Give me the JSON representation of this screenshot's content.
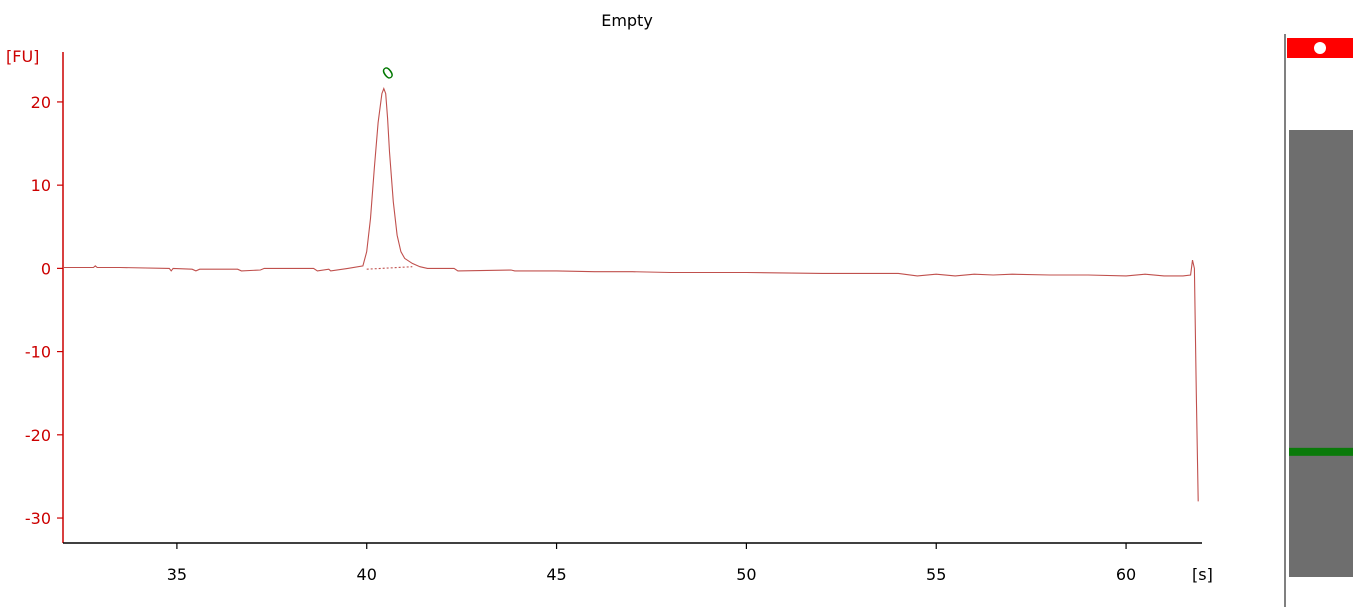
{
  "chart_data": {
    "type": "line",
    "title": "Empty",
    "ylabel": "[FU]",
    "xlabel": "[s]",
    "xlim": [
      32.0,
      62.0
    ],
    "ylim": [
      -33,
      26
    ],
    "x_ticks": [
      35,
      40,
      45,
      50,
      55,
      60
    ],
    "y_ticks": [
      20,
      10,
      0,
      -10,
      -20,
      -30
    ],
    "grid": false,
    "series": [
      {
        "color": "#c0504d",
        "x": [
          32.0,
          32.8,
          32.85,
          32.9,
          33.5,
          34.8,
          34.85,
          34.9,
          35.4,
          35.5,
          35.6,
          36.6,
          36.7,
          37.2,
          37.3,
          38.6,
          38.7,
          39.0,
          39.05,
          39.5,
          39.9,
          40.0,
          40.1,
          40.2,
          40.3,
          40.4,
          40.45,
          40.5,
          40.55,
          40.6,
          40.7,
          40.8,
          40.9,
          41.0,
          41.2,
          41.4,
          41.6,
          42.3,
          42.4,
          43.8,
          43.9,
          45.0,
          46.0,
          47.0,
          48.0,
          50.0,
          52.0,
          54.0,
          54.5,
          55.0,
          55.5,
          56.0,
          56.5,
          57.0,
          58.0,
          59.0,
          60.0,
          60.5,
          61.0,
          61.5,
          61.7,
          61.75,
          61.8,
          61.85,
          61.9
        ],
        "y": [
          0.1,
          0.1,
          0.3,
          0.1,
          0.1,
          0.0,
          -0.3,
          0.0,
          -0.1,
          -0.3,
          -0.1,
          -0.1,
          -0.3,
          -0.2,
          0.0,
          0.0,
          -0.3,
          -0.1,
          -0.3,
          0.0,
          0.3,
          2.0,
          6.0,
          12.0,
          17.5,
          21.0,
          21.6,
          21.0,
          18.0,
          14.0,
          8.0,
          4.0,
          2.0,
          1.2,
          0.6,
          0.2,
          0.0,
          0.0,
          -0.3,
          -0.2,
          -0.3,
          -0.3,
          -0.4,
          -0.4,
          -0.5,
          -0.5,
          -0.6,
          -0.6,
          -0.9,
          -0.7,
          -0.9,
          -0.7,
          -0.8,
          -0.7,
          -0.8,
          -0.8,
          -0.9,
          -0.7,
          -0.9,
          -0.9,
          -0.8,
          1.0,
          0.0,
          -15.0,
          -28.0
        ]
      },
      {
        "style": "dotted",
        "color": "#c0504d",
        "x": [
          40.0,
          41.2
        ],
        "y": [
          -0.1,
          0.2
        ]
      }
    ],
    "annotations": [
      {
        "text": "0",
        "x": 40.5,
        "y": 23.5,
        "color": "#007700"
      }
    ]
  },
  "gel_lane": {
    "marker_color": "#ff0000",
    "lane_color": "#6e6e6e",
    "band_color": "#0a7a0a",
    "band_level": 0.72
  }
}
